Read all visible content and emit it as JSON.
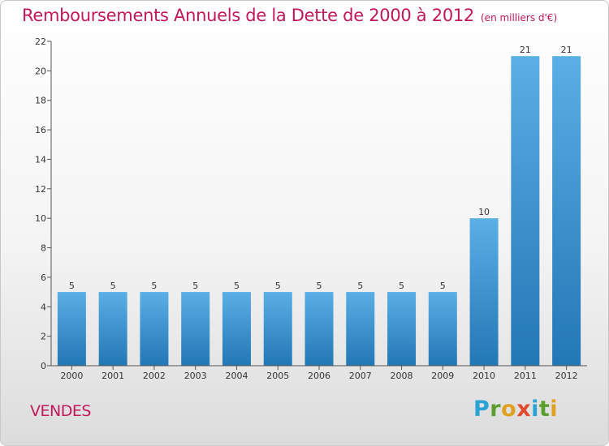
{
  "title": "Remboursements Annuels de la Dette de 2000 à 2012",
  "unit_note": "(en milliers d'€)",
  "commune": "VENDES",
  "logo": {
    "text": "Proxiti",
    "letters": [
      {
        "ch": "P",
        "color": "#29a3d6"
      },
      {
        "ch": "r",
        "color": "#5a9e2e"
      },
      {
        "ch": "o",
        "color": "#e0a020"
      },
      {
        "ch": "x",
        "color": "#e14b2b"
      },
      {
        "ch": "i",
        "color": "#29a3d6"
      },
      {
        "ch": "t",
        "color": "#5a9e2e"
      },
      {
        "ch": "i",
        "color": "#e0a020"
      }
    ]
  },
  "colors": {
    "title": "#c2185b",
    "bar_top": "#5aafe6",
    "bar_bottom": "#2277b5"
  },
  "chart_data": {
    "type": "bar",
    "title": "Remboursements Annuels de la Dette de 2000 à 2012",
    "categories": [
      "2000",
      "2001",
      "2002",
      "2003",
      "2004",
      "2005",
      "2006",
      "2007",
      "2008",
      "2009",
      "2010",
      "2011",
      "2012"
    ],
    "values": [
      5,
      5,
      5,
      5,
      5,
      5,
      5,
      5,
      5,
      5,
      10,
      21,
      21
    ],
    "ylim": [
      0,
      22
    ],
    "yticks": [
      0,
      2,
      4,
      6,
      8,
      10,
      12,
      14,
      16,
      18,
      20,
      22
    ],
    "xlabel": "",
    "ylabel": "",
    "grid": false,
    "data_labels": true
  }
}
